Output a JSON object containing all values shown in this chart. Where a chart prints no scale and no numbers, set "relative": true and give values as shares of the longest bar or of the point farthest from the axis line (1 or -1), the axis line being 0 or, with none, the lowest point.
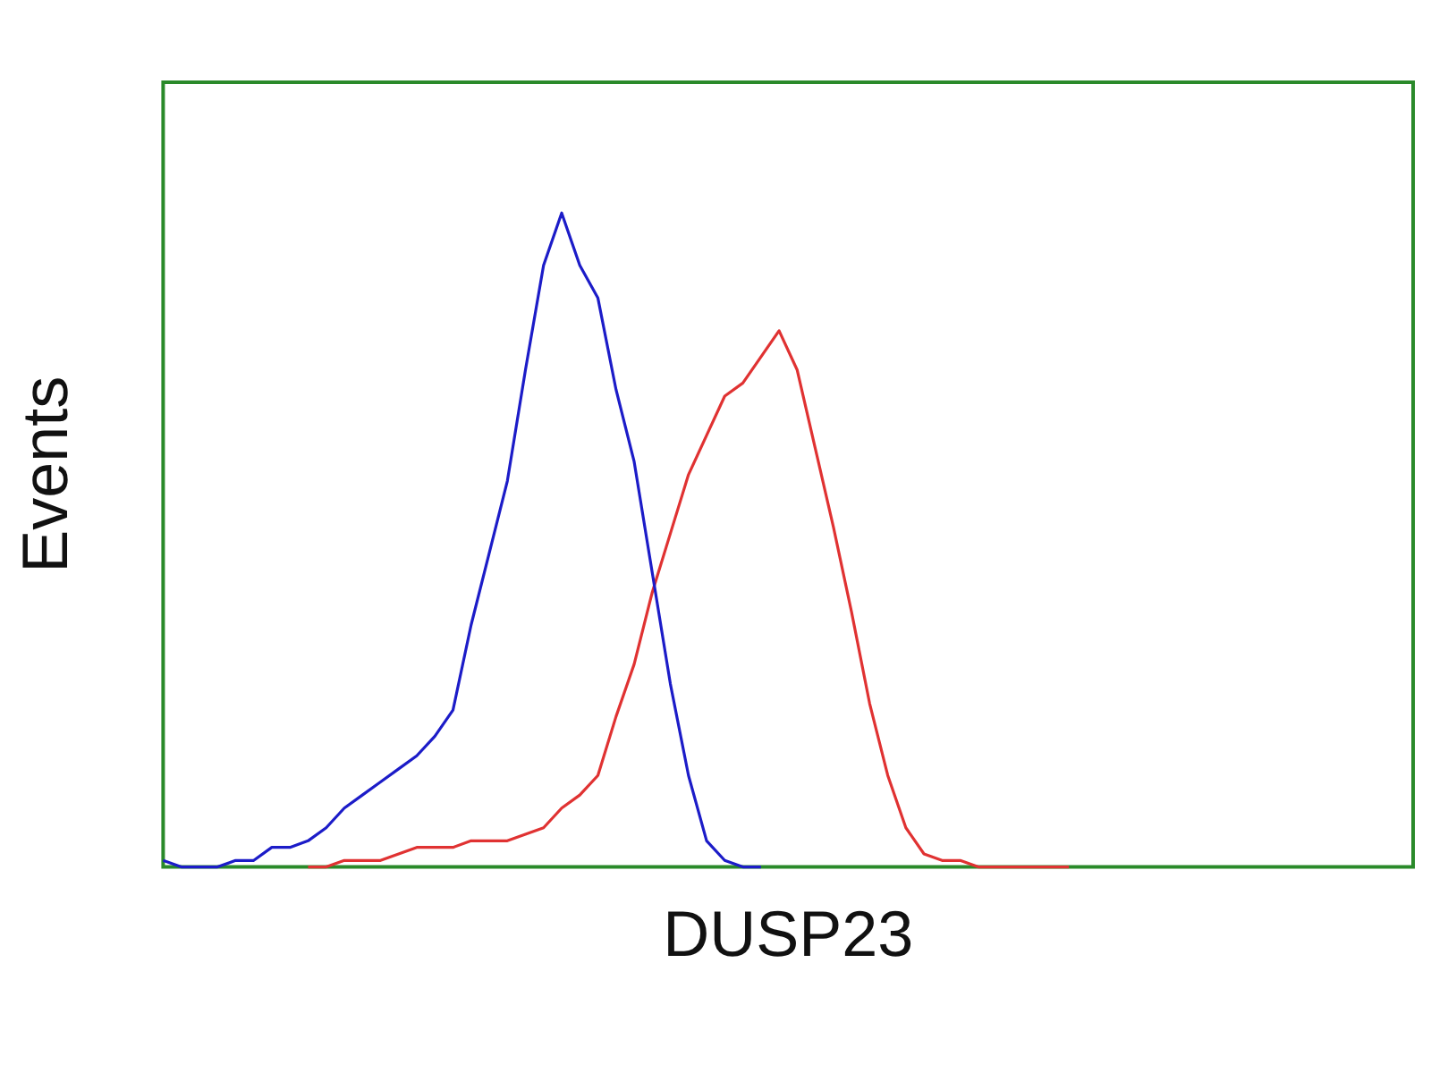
{
  "chart_data": {
    "type": "line",
    "xlabel": "DUSP23",
    "ylabel": "Events",
    "relative": true,
    "grid": false,
    "legend": false,
    "marker": "none",
    "line_style": "solid",
    "categories": [
      null,
      null,
      null,
      null,
      null,
      null,
      null,
      null,
      null,
      null,
      null,
      null,
      null,
      null,
      null,
      null,
      null,
      null,
      null,
      null,
      null,
      null,
      null,
      null,
      null,
      null,
      null,
      null,
      null,
      null,
      null,
      null,
      null,
      null,
      null,
      null,
      null,
      null,
      null,
      null,
      null,
      null,
      null,
      null,
      null,
      null,
      null,
      null,
      null,
      null,
      null,
      null,
      null,
      null,
      null,
      null,
      null,
      null,
      null,
      null,
      null,
      null,
      null,
      null,
      null,
      null,
      null,
      null,
      null,
      null
    ],
    "series": [
      {
        "color": "#1c1cc8",
        "values": [
          0.01,
          0,
          0,
          0,
          0.01,
          0.01,
          0.03,
          0.03,
          0.04,
          0.06,
          0.09,
          0.11,
          0.13,
          0.15,
          0.17,
          0.2,
          0.24,
          0.37,
          0.48,
          0.59,
          0.76,
          0.92,
          1,
          0.92,
          0.87,
          0.73,
          0.62,
          0.45,
          0.28,
          0.14,
          0.04,
          0.01,
          0,
          0,
          null,
          null,
          null,
          null,
          null,
          null,
          null,
          null,
          null,
          null,
          null,
          null,
          null,
          null,
          null,
          null,
          null,
          null,
          null,
          null,
          null,
          null,
          null,
          null,
          null,
          null,
          null,
          null,
          null,
          null,
          null,
          null,
          null,
          null,
          null,
          null
        ]
      },
      {
        "color": "#e03232",
        "values": [
          null,
          null,
          null,
          null,
          null,
          null,
          null,
          null,
          0,
          0,
          0.01,
          0.01,
          0.01,
          0.02,
          0.03,
          0.03,
          0.03,
          0.04,
          0.04,
          0.04,
          0.05,
          0.06,
          0.09,
          0.11,
          0.14,
          0.23,
          0.31,
          0.42,
          0.51,
          0.6,
          0.66,
          0.72,
          0.74,
          0.78,
          0.82,
          0.76,
          0.64,
          0.52,
          0.39,
          0.25,
          0.14,
          0.06,
          0.02,
          0.01,
          0.01,
          0,
          0,
          0,
          0,
          0,
          0,
          null,
          null,
          null,
          null,
          null,
          null,
          null,
          null,
          null,
          null,
          null,
          null,
          null,
          null,
          null,
          null,
          null,
          null,
          null
        ]
      }
    ]
  }
}
